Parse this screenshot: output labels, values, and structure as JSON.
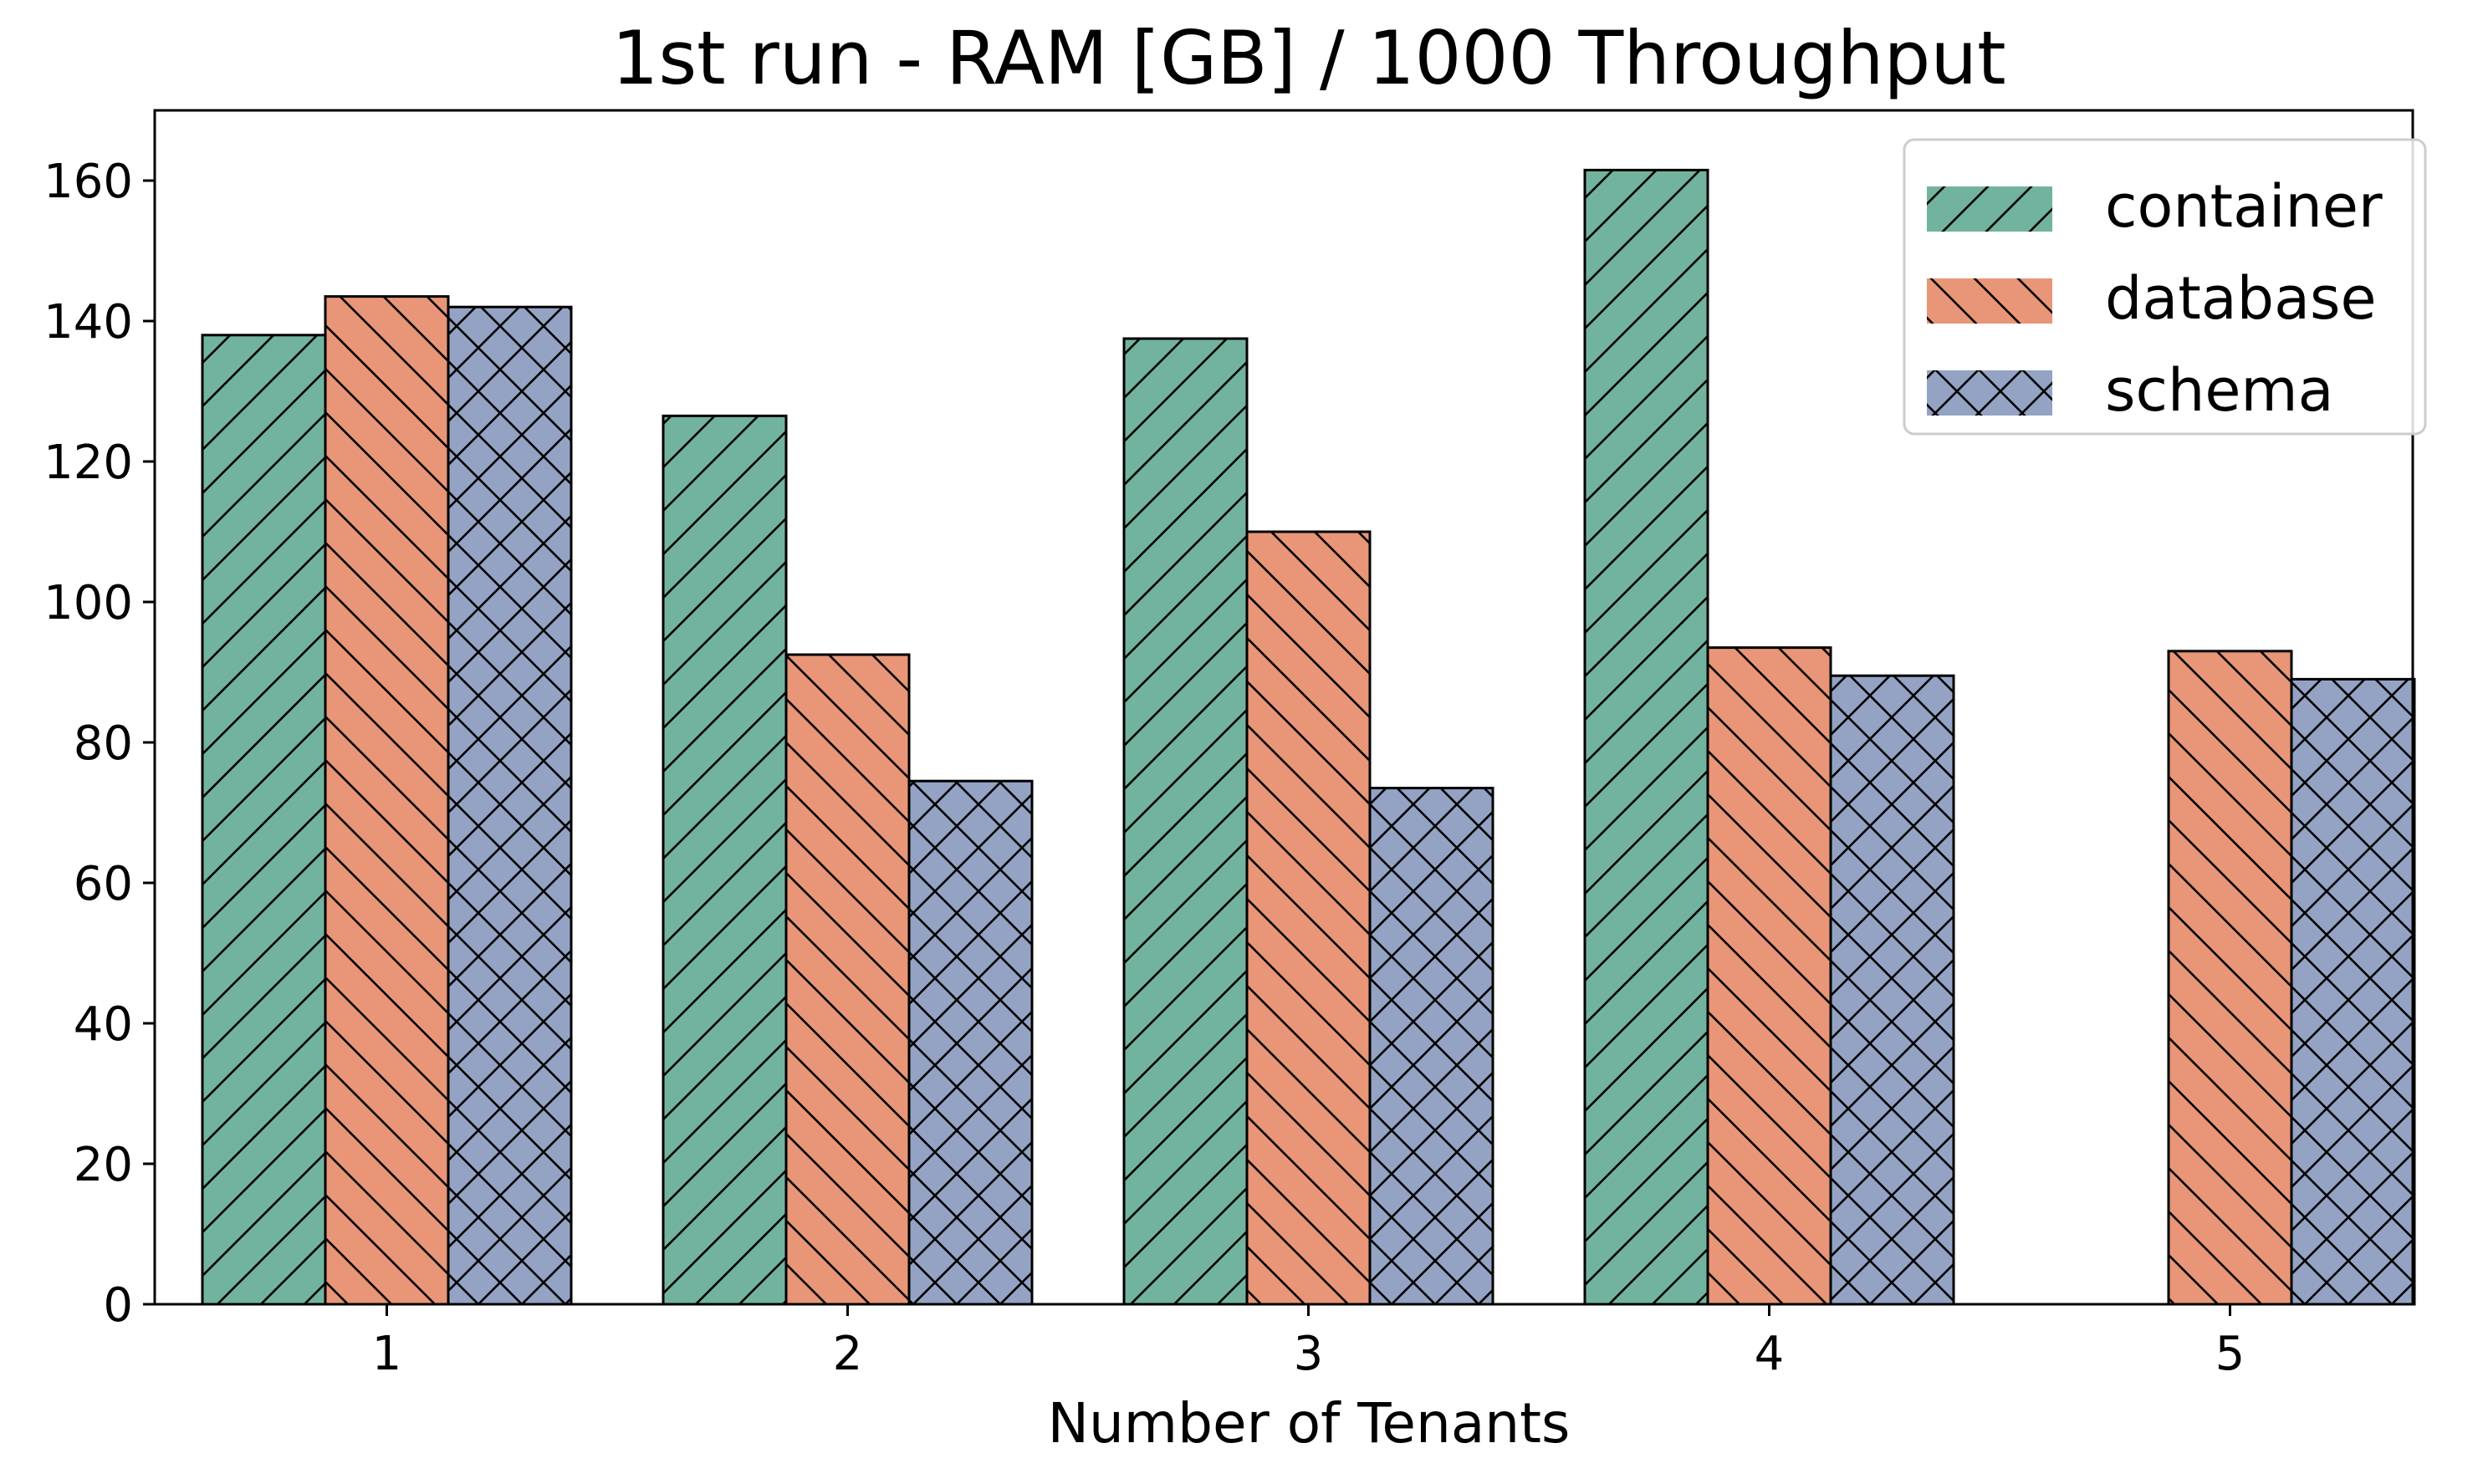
{
  "chart_data": {
    "type": "bar",
    "title": "1st run - RAM [GB] / 1000 Throughput",
    "xlabel": "Number of Tenants",
    "ylabel": "",
    "categories": [
      "1",
      "2",
      "3",
      "4",
      "5"
    ],
    "series": [
      {
        "name": "container",
        "values": [
          138,
          126.5,
          137.5,
          161.5,
          null
        ],
        "color": "#72b39f",
        "hatch": "forward-diagonal"
      },
      {
        "name": "database",
        "values": [
          143.5,
          92.5,
          110,
          93.5,
          93
        ],
        "color": "#e89677",
        "hatch": "back-diagonal"
      },
      {
        "name": "schema",
        "values": [
          142,
          74.5,
          73.5,
          89.5,
          89
        ],
        "color": "#94a3c4",
        "hatch": "cross"
      }
    ],
    "ylim": [
      0,
      170
    ],
    "yticks": [
      0,
      20,
      40,
      60,
      80,
      100,
      120,
      140,
      160
    ],
    "grid": false,
    "legend_position": "top-right"
  }
}
